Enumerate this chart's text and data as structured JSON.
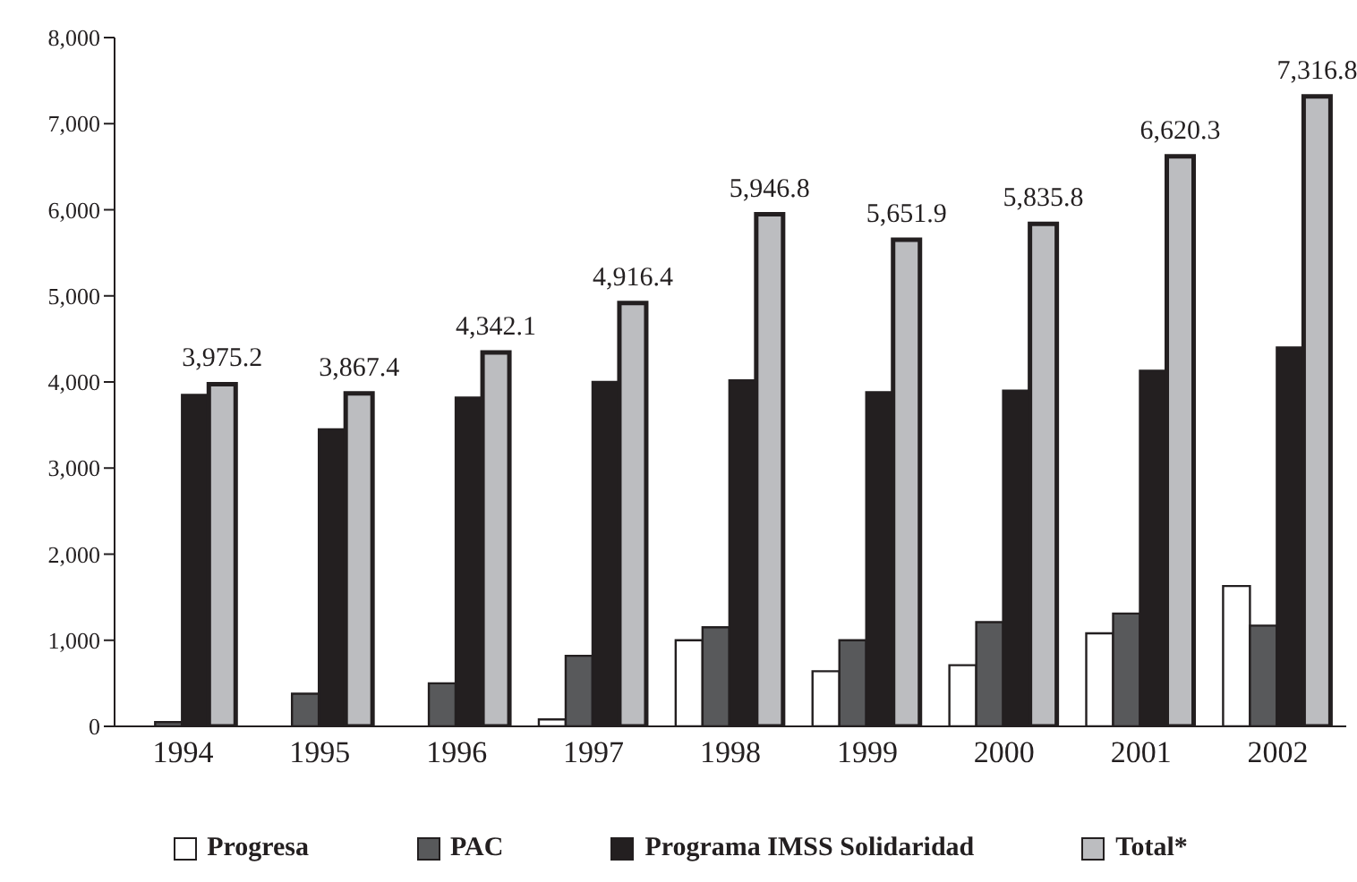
{
  "chart_data": {
    "type": "bar",
    "categories": [
      "1994",
      "1995",
      "1996",
      "1997",
      "1998",
      "1999",
      "2000",
      "2001",
      "2002"
    ],
    "series": [
      {
        "name": "Progresa",
        "color": "#ffffff",
        "values": [
          0,
          0,
          0,
          80,
          1000,
          640,
          710,
          1080,
          1630
        ]
      },
      {
        "name": "PAC",
        "color": "#58595b",
        "values": [
          50,
          380,
          500,
          820,
          1150,
          1000,
          1210,
          1310,
          1170
        ]
      },
      {
        "name": "Programa IMSS Solidaridad",
        "color": "#231f20",
        "values": [
          3850,
          3450,
          3820,
          4000,
          4020,
          3880,
          3900,
          4130,
          4400
        ]
      },
      {
        "name": "Total*",
        "color": "#bcbdc0",
        "values": [
          3975.2,
          3867.4,
          4342.1,
          4916.4,
          5946.8,
          5651.9,
          5835.8,
          6620.3,
          7316.8
        ],
        "value_labels": [
          "3,975.2",
          "3,867.4",
          "4,342.1",
          "4,916.4",
          "5,946.8",
          "5,651.9",
          "5,835.8",
          "6,620.3",
          "7,316.8"
        ]
      }
    ],
    "ylim": [
      0,
      8000
    ],
    "yticks": [
      0,
      {
        "value": 1000,
        "label": "1,000"
      },
      {
        "value": 2000,
        "label": "2,000"
      },
      {
        "value": 3000,
        "label": "3,000"
      },
      {
        "value": 4000,
        "label": "4,000"
      },
      {
        "value": 5000,
        "label": "5,000"
      },
      {
        "value": 6000,
        "label": "6,000"
      },
      {
        "value": 7000,
        "label": "7,000"
      },
      {
        "value": 8000,
        "label": "8,000"
      }
    ],
    "grid": false,
    "legend": "bottom"
  }
}
